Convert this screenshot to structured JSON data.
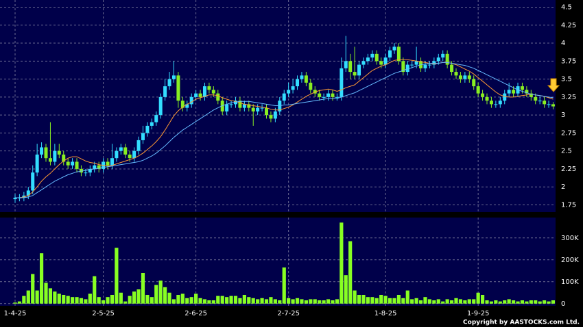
{
  "chart_data": [
    {
      "type": "candlestick",
      "categories": [
        "1-4-25",
        null,
        null,
        null,
        null,
        null,
        null,
        null,
        null,
        null,
        null,
        null,
        null,
        null,
        null,
        null,
        null,
        null,
        null,
        null,
        "2-5-25",
        null,
        null,
        null,
        null,
        null,
        null,
        null,
        null,
        null,
        null,
        null,
        null,
        null,
        null,
        null,
        null,
        null,
        null,
        null,
        null,
        "2-6-25",
        null,
        null,
        null,
        null,
        null,
        null,
        null,
        null,
        null,
        null,
        null,
        null,
        null,
        null,
        null,
        null,
        null,
        null,
        null,
        null,
        "2-7-25",
        null,
        null,
        null,
        null,
        null,
        null,
        null,
        null,
        null,
        null,
        null,
        null,
        null,
        null,
        null,
        null,
        null,
        null,
        null,
        null,
        null,
        "1-8-25",
        null,
        null,
        null,
        null,
        null,
        null,
        null,
        null,
        null,
        null,
        null,
        null,
        null,
        null,
        null,
        null,
        null,
        null,
        null,
        null,
        "1-9-25",
        null,
        null,
        null,
        null,
        null,
        null,
        null,
        null,
        null,
        null,
        null,
        null,
        null,
        null,
        null,
        null,
        null
      ],
      "open": [
        1.83,
        1.85,
        1.85,
        1.88,
        1.95,
        2.2,
        2.45,
        2.55,
        2.4,
        2.35,
        2.5,
        2.45,
        2.35,
        2.3,
        2.35,
        2.25,
        2.2,
        2.2,
        2.25,
        2.3,
        2.25,
        2.35,
        2.3,
        2.4,
        2.5,
        2.55,
        2.45,
        2.4,
        2.5,
        2.65,
        2.75,
        2.85,
        2.9,
        3.0,
        3.25,
        3.4,
        3.5,
        3.55,
        3.2,
        3.1,
        3.15,
        3.25,
        3.3,
        3.25,
        3.4,
        3.35,
        3.3,
        3.2,
        3.05,
        3.15,
        3.15,
        3.2,
        3.1,
        3.15,
        3.1,
        3.05,
        3.1,
        3.1,
        3.0,
        2.95,
        3.05,
        3.2,
        3.3,
        3.35,
        3.4,
        3.5,
        3.55,
        3.45,
        3.35,
        3.3,
        3.25,
        3.25,
        3.3,
        3.25,
        3.25,
        3.65,
        3.75,
        3.6,
        3.55,
        3.7,
        3.75,
        3.8,
        3.85,
        3.75,
        3.7,
        3.8,
        3.9,
        3.95,
        3.75,
        3.6,
        3.7,
        3.7,
        3.75,
        3.65,
        3.7,
        3.7,
        3.75,
        3.8,
        3.85,
        3.7,
        3.6,
        3.55,
        3.5,
        3.55,
        3.5,
        3.4,
        3.3,
        3.25,
        3.2,
        3.15,
        3.15,
        3.2,
        3.3,
        3.35,
        3.3,
        3.4,
        3.35,
        3.3,
        3.25,
        3.2,
        3.2,
        3.15,
        3.15
      ],
      "high": [
        1.9,
        1.9,
        1.93,
        2.0,
        2.3,
        2.6,
        2.62,
        2.6,
        2.9,
        2.6,
        2.6,
        2.5,
        2.4,
        2.4,
        2.4,
        2.3,
        2.25,
        2.3,
        2.35,
        2.35,
        2.4,
        2.4,
        2.6,
        2.55,
        2.6,
        2.6,
        2.5,
        2.55,
        2.7,
        2.85,
        2.9,
        2.95,
        3.05,
        3.3,
        3.5,
        3.6,
        3.75,
        3.6,
        3.25,
        3.2,
        3.3,
        3.35,
        3.35,
        3.45,
        3.45,
        3.4,
        3.35,
        3.25,
        3.2,
        3.2,
        3.25,
        3.25,
        3.2,
        3.2,
        3.15,
        3.15,
        3.15,
        3.15,
        3.05,
        3.1,
        3.25,
        3.35,
        3.45,
        3.5,
        3.55,
        3.6,
        3.6,
        3.5,
        3.4,
        3.35,
        3.3,
        3.35,
        3.35,
        3.3,
        3.8,
        4.1,
        3.85,
        3.95,
        3.75,
        3.8,
        3.85,
        3.9,
        3.9,
        3.8,
        3.85,
        3.95,
        4.0,
        4.0,
        3.8,
        3.75,
        3.75,
        3.95,
        3.8,
        3.75,
        3.75,
        3.8,
        3.85,
        3.9,
        3.9,
        3.75,
        3.65,
        3.6,
        3.6,
        3.6,
        3.55,
        3.45,
        3.35,
        3.3,
        3.25,
        3.2,
        3.25,
        3.35,
        3.45,
        3.4,
        3.45,
        3.45,
        3.4,
        3.35,
        3.3,
        3.25,
        3.25,
        3.2,
        3.18
      ],
      "low": [
        1.78,
        1.8,
        1.8,
        1.83,
        1.9,
        2.15,
        2.4,
        2.35,
        2.3,
        2.3,
        2.4,
        2.3,
        2.25,
        2.25,
        2.2,
        2.15,
        2.15,
        2.15,
        2.2,
        2.2,
        2.2,
        2.25,
        2.25,
        2.35,
        2.45,
        2.4,
        2.35,
        2.35,
        2.45,
        2.6,
        2.7,
        2.8,
        2.85,
        2.95,
        3.2,
        3.35,
        3.45,
        3.1,
        3.05,
        3.05,
        3.1,
        3.2,
        3.2,
        3.2,
        3.3,
        3.25,
        3.15,
        3.0,
        3.0,
        3.1,
        3.1,
        3.05,
        3.05,
        3.05,
        2.85,
        3.0,
        3.05,
        2.95,
        2.9,
        2.9,
        3.0,
        3.15,
        3.25,
        3.3,
        3.35,
        3.45,
        3.4,
        3.3,
        3.25,
        3.2,
        3.2,
        3.2,
        3.2,
        3.2,
        3.2,
        3.6,
        3.5,
        3.5,
        3.5,
        3.65,
        3.7,
        3.75,
        3.7,
        3.65,
        3.65,
        3.75,
        3.85,
        3.7,
        3.55,
        3.55,
        3.65,
        3.65,
        3.6,
        3.6,
        3.65,
        3.65,
        3.7,
        3.75,
        3.65,
        3.55,
        3.5,
        3.45,
        3.45,
        3.45,
        3.35,
        3.25,
        3.2,
        3.15,
        3.1,
        3.1,
        3.1,
        3.15,
        3.25,
        3.25,
        3.25,
        3.3,
        3.25,
        3.2,
        3.15,
        3.15,
        3.1,
        3.1,
        3.08
      ],
      "close": [
        1.85,
        1.85,
        1.88,
        1.95,
        2.2,
        2.45,
        2.55,
        2.4,
        2.35,
        2.5,
        2.45,
        2.35,
        2.3,
        2.35,
        2.25,
        2.2,
        2.2,
        2.25,
        2.3,
        2.25,
        2.35,
        2.3,
        2.4,
        2.5,
        2.55,
        2.45,
        2.4,
        2.5,
        2.65,
        2.75,
        2.85,
        2.9,
        3.0,
        3.25,
        3.4,
        3.5,
        3.55,
        3.2,
        3.1,
        3.15,
        3.25,
        3.3,
        3.25,
        3.4,
        3.35,
        3.3,
        3.2,
        3.05,
        3.15,
        3.15,
        3.2,
        3.1,
        3.15,
        3.1,
        3.05,
        3.1,
        3.1,
        3.0,
        2.95,
        3.05,
        3.2,
        3.3,
        3.35,
        3.4,
        3.5,
        3.55,
        3.45,
        3.35,
        3.3,
        3.25,
        3.25,
        3.3,
        3.25,
        3.25,
        3.65,
        3.75,
        3.6,
        3.55,
        3.7,
        3.75,
        3.8,
        3.85,
        3.75,
        3.7,
        3.8,
        3.9,
        3.95,
        3.75,
        3.6,
        3.7,
        3.7,
        3.75,
        3.65,
        3.7,
        3.7,
        3.75,
        3.8,
        3.85,
        3.7,
        3.6,
        3.55,
        3.5,
        3.55,
        3.5,
        3.4,
        3.3,
        3.25,
        3.2,
        3.15,
        3.15,
        3.2,
        3.3,
        3.35,
        3.3,
        3.4,
        3.35,
        3.3,
        3.25,
        3.2,
        3.2,
        3.15,
        3.15,
        3.12
      ],
      "up_color": "#33ddff",
      "down_color": "#88ee22",
      "series": [
        {
          "color": "#ff9933",
          "values": [
            1.85,
            1.85,
            1.86,
            1.88,
            1.93,
            2.0,
            2.08,
            2.14,
            2.19,
            2.25,
            2.31,
            2.36,
            2.4,
            2.42,
            2.42,
            2.39,
            2.36,
            2.34,
            2.33,
            2.31,
            2.3,
            2.29,
            2.3,
            2.32,
            2.34,
            2.36,
            2.38,
            2.4,
            2.43,
            2.47,
            2.52,
            2.57,
            2.63,
            2.7,
            2.79,
            2.89,
            2.99,
            3.06,
            3.11,
            3.15,
            3.18,
            3.22,
            3.24,
            3.26,
            3.28,
            3.28,
            3.27,
            3.24,
            3.22,
            3.2,
            3.19,
            3.17,
            3.15,
            3.14,
            3.13,
            3.12,
            3.11,
            3.1,
            3.08,
            3.07,
            3.07,
            3.09,
            3.11,
            3.14,
            3.18,
            3.22,
            3.26,
            3.29,
            3.32,
            3.34,
            3.35,
            3.36,
            3.35,
            3.33,
            3.35,
            3.38,
            3.4,
            3.42,
            3.47,
            3.52,
            3.57,
            3.62,
            3.65,
            3.68,
            3.7,
            3.73,
            3.76,
            3.77,
            3.77,
            3.77,
            3.76,
            3.75,
            3.74,
            3.73,
            3.72,
            3.71,
            3.72,
            3.73,
            3.73,
            3.72,
            3.7,
            3.67,
            3.64,
            3.61,
            3.57,
            3.52,
            3.47,
            3.42,
            3.37,
            3.32,
            3.28,
            3.26,
            3.25,
            3.25,
            3.26,
            3.27,
            3.28,
            3.29,
            3.28,
            3.27,
            3.26,
            3.24,
            3.22
          ]
        },
        {
          "color": "#66bbff",
          "values": [
            1.85,
            1.85,
            1.85,
            1.86,
            1.88,
            1.92,
            1.96,
            2.0,
            2.04,
            2.08,
            2.11,
            2.14,
            2.17,
            2.19,
            2.21,
            2.22,
            2.23,
            2.24,
            2.25,
            2.26,
            2.27,
            2.28,
            2.29,
            2.3,
            2.31,
            2.32,
            2.33,
            2.34,
            2.35,
            2.37,
            2.4,
            2.43,
            2.47,
            2.52,
            2.57,
            2.63,
            2.69,
            2.74,
            2.79,
            2.83,
            2.87,
            2.91,
            2.95,
            2.99,
            3.03,
            3.07,
            3.1,
            3.13,
            3.15,
            3.17,
            3.18,
            3.19,
            3.19,
            3.19,
            3.18,
            3.17,
            3.16,
            3.15,
            3.14,
            3.13,
            3.13,
            3.14,
            3.14,
            3.15,
            3.16,
            3.17,
            3.18,
            3.19,
            3.2,
            3.21,
            3.22,
            3.23,
            3.23,
            3.23,
            3.25,
            3.27,
            3.29,
            3.31,
            3.34,
            3.37,
            3.4,
            3.43,
            3.46,
            3.49,
            3.52,
            3.55,
            3.58,
            3.6,
            3.62,
            3.64,
            3.66,
            3.68,
            3.7,
            3.71,
            3.72,
            3.72,
            3.72,
            3.73,
            3.73,
            3.72,
            3.71,
            3.7,
            3.69,
            3.67,
            3.65,
            3.62,
            3.59,
            3.56,
            3.53,
            3.5,
            3.47,
            3.44,
            3.41,
            3.38,
            3.35,
            3.33,
            3.31,
            3.29,
            3.28,
            3.27,
            3.26,
            3.25,
            3.24
          ]
        }
      ],
      "ylim": [
        1.65,
        4.6
      ],
      "yticks": [
        1.75,
        2,
        2.25,
        2.5,
        2.75,
        3,
        3.25,
        3.5,
        3.75,
        4,
        4.25,
        4.5
      ],
      "grid": true
    },
    {
      "type": "bar",
      "color": "#88ff22",
      "values": [
        5000,
        10000,
        35000,
        60000,
        135000,
        60000,
        230000,
        95000,
        70000,
        55000,
        45000,
        40000,
        35000,
        30000,
        30000,
        25000,
        20000,
        45000,
        125000,
        30000,
        15000,
        30000,
        40000,
        255000,
        50000,
        10000,
        35000,
        55000,
        65000,
        140000,
        40000,
        30000,
        85000,
        105000,
        75000,
        50000,
        20000,
        40000,
        45000,
        25000,
        30000,
        45000,
        25000,
        20000,
        15000,
        15000,
        35000,
        35000,
        30000,
        35000,
        35000,
        25000,
        40000,
        30000,
        25000,
        20000,
        25000,
        20000,
        30000,
        20000,
        15000,
        165000,
        25000,
        20000,
        25000,
        20000,
        15000,
        20000,
        20000,
        15000,
        15000,
        20000,
        15000,
        20000,
        370000,
        130000,
        285000,
        60000,
        40000,
        40000,
        30000,
        30000,
        25000,
        40000,
        35000,
        25000,
        25000,
        40000,
        25000,
        60000,
        20000,
        25000,
        15000,
        30000,
        20000,
        15000,
        20000,
        10000,
        20000,
        15000,
        25000,
        20000,
        15000,
        20000,
        20000,
        50000,
        40000,
        15000,
        10000,
        15000,
        10000,
        15000,
        20000,
        15000,
        10000,
        15000,
        10000,
        15000,
        15000,
        10000,
        15000,
        10000,
        15000
      ],
      "ylim": [
        -10000,
        393000
      ],
      "yticks": [
        0,
        {
          "value": 100000,
          "label": "100K"
        },
        {
          "value": 200000,
          "label": "200K"
        },
        {
          "value": 300000,
          "label": "300K"
        }
      ],
      "grid": true
    }
  ],
  "copyright": "Copyright by AASTOCKS.com Ltd."
}
